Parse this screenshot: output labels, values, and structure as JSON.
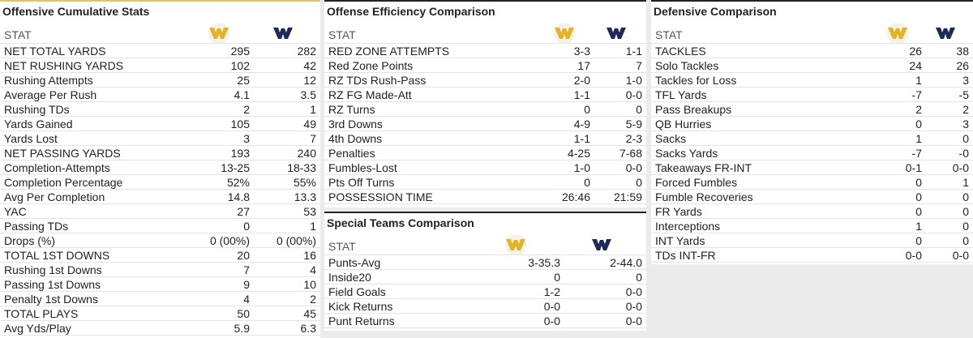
{
  "panels": [
    {
      "title": "Offensive Cumulative Stats",
      "header": "STAT",
      "rows": [
        [
          "NET TOTAL YARDS",
          "295",
          "282"
        ],
        [
          "NET RUSHING YARDS",
          "102",
          "42"
        ],
        [
          "Rushing Attempts",
          "25",
          "12"
        ],
        [
          "Average Per Rush",
          "4.1",
          "3.5"
        ],
        [
          "Rushing TDs",
          "2",
          "1"
        ],
        [
          "Yards Gained",
          "105",
          "49"
        ],
        [
          "Yards Lost",
          "3",
          "7"
        ],
        [
          "NET PASSING YARDS",
          "193",
          "240"
        ],
        [
          "Completion-Attempts",
          "13-25",
          "18-33"
        ],
        [
          "Completion Percentage",
          "52%",
          "55%"
        ],
        [
          "Avg Per Completion",
          "14.8",
          "13.3"
        ],
        [
          "YAC",
          "27",
          "53"
        ],
        [
          "Passing TDs",
          "0",
          "1"
        ],
        [
          "Drops (%)",
          "0 (00%)",
          "0 (00%)"
        ],
        [
          "TOTAL 1ST DOWNS",
          "20",
          "16"
        ],
        [
          "Rushing 1st Downs",
          "7",
          "4"
        ],
        [
          "Passing 1st Downs",
          "9",
          "10"
        ],
        [
          "Penalty 1st Downs",
          "4",
          "2"
        ],
        [
          "TOTAL PLAYS",
          "50",
          "45"
        ],
        [
          "Avg Yds/Play",
          "5.9",
          "6.3"
        ]
      ]
    },
    {
      "title": "Offense Efficiency Comparison",
      "header": "STAT",
      "rows": [
        [
          "RED ZONE ATTEMPTS",
          "3-3",
          "1-1"
        ],
        [
          "Red Zone Points",
          "17",
          "7"
        ],
        [
          "RZ TDs Rush-Pass",
          "2-0",
          "1-0"
        ],
        [
          "RZ FG Made-Att",
          "1-1",
          "0-0"
        ],
        [
          "RZ Turns",
          "0",
          "0"
        ],
        [
          "3rd Downs",
          "4-9",
          "5-9"
        ],
        [
          "4th Downs",
          "1-1",
          "2-3"
        ],
        [
          "Penalties",
          "4-25",
          "7-68"
        ],
        [
          "Fumbles-Lost",
          "1-0",
          "0-0"
        ],
        [
          "Pts Off Turns",
          "0",
          "0"
        ],
        [
          "POSSESSION TIME",
          "26:46",
          "21:59"
        ]
      ]
    },
    {
      "title": "Special Teams Comparison",
      "header": "STAT",
      "rows": [
        [
          "Punts-Avg",
          "3-35.3",
          "2-44.0"
        ],
        [
          "Inside20",
          "0",
          "0"
        ],
        [
          "Field Goals",
          "1-2",
          "0-0"
        ],
        [
          "Kick Returns",
          "0-0",
          "0-0"
        ],
        [
          "Punt Returns",
          "0-0",
          "0-0"
        ]
      ]
    },
    {
      "title": "Defensive Comparison",
      "header": "STAT",
      "rows": [
        [
          "TACKLES",
          "26",
          "38"
        ],
        [
          "Solo Tackles",
          "24",
          "26"
        ],
        [
          "Tackles for Loss",
          "1",
          "3"
        ],
        [
          "TFL Yards",
          "-7",
          "-5"
        ],
        [
          "Pass Breakups",
          "2",
          "2"
        ],
        [
          "QB Hurries",
          "0",
          "3"
        ],
        [
          "Sacks",
          "1",
          "0"
        ],
        [
          "Sacks Yards",
          "-7",
          "-0"
        ],
        [
          "Takeaways FR-INT",
          "0-1",
          "0-0"
        ],
        [
          "Forced Fumbles",
          "0",
          "1"
        ],
        [
          "Fumble Recoveries",
          "0",
          "0"
        ],
        [
          "FR Yards",
          "0",
          "0"
        ],
        [
          "Interceptions",
          "1",
          "0"
        ],
        [
          "INT Yards",
          "0",
          "0"
        ],
        [
          "TDs INT-FR",
          "0-0",
          "0-0"
        ]
      ]
    }
  ]
}
